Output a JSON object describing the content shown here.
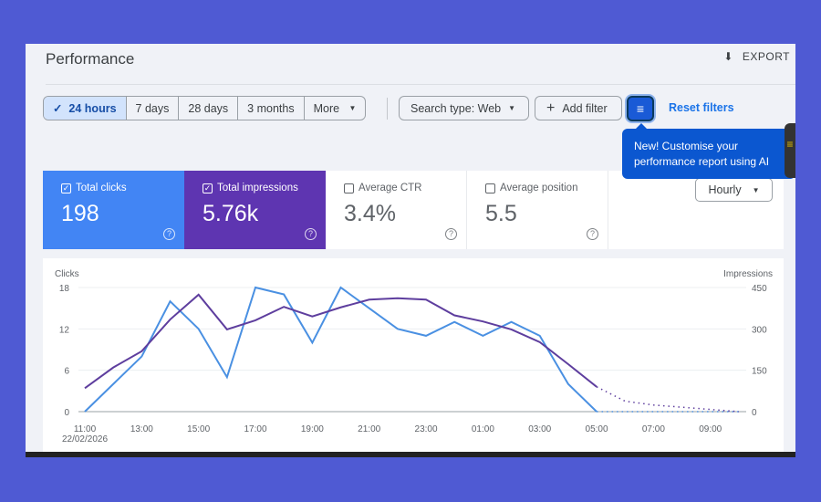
{
  "header": {
    "title": "Performance",
    "export_label": "EXPORT"
  },
  "date_ranges": [
    {
      "label": "24 hours",
      "selected": true
    },
    {
      "label": "7 days"
    },
    {
      "label": "28 days"
    },
    {
      "label": "3 months"
    },
    {
      "label": "More"
    }
  ],
  "filters": {
    "search_type": "Search type: Web",
    "add_filter": "Add filter",
    "reset": "Reset filters"
  },
  "tooltip": "New! Customise your performance report using AI",
  "metrics": [
    {
      "label": "Total clicks",
      "value": "198",
      "checked": true,
      "color": "#4285f4"
    },
    {
      "label": "Total impressions",
      "value": "5.76k",
      "checked": true,
      "color": "#5e35b1"
    },
    {
      "label": "Average CTR",
      "value": "3.4%",
      "checked": false
    },
    {
      "label": "Average position",
      "value": "5.5",
      "checked": false
    }
  ],
  "granularity": "Hourly",
  "chart_data": {
    "type": "line",
    "x": [
      "11:00",
      "12:00",
      "13:00",
      "14:00",
      "15:00",
      "16:00",
      "17:00",
      "18:00",
      "19:00",
      "20:00",
      "21:00",
      "22:00",
      "23:00",
      "00:00",
      "01:00",
      "02:00",
      "03:00",
      "04:00",
      "05:00",
      "06:00",
      "07:00",
      "08:00",
      "09:00",
      "10:00"
    ],
    "x_tick_labels": [
      "11:00",
      "13:00",
      "15:00",
      "17:00",
      "19:00",
      "21:00",
      "23:00",
      "01:00",
      "03:00",
      "05:00",
      "07:00",
      "09:00"
    ],
    "x_start_date": "22/02/2026",
    "ylabel_left": "Clicks",
    "ylabel_right": "Impressions",
    "ylim_left": [
      0,
      18
    ],
    "yticks_left": [
      0,
      6,
      12,
      18
    ],
    "ylim_right": [
      0,
      450
    ],
    "yticks_right": [
      0,
      150,
      300,
      450
    ],
    "grid": true,
    "series": [
      {
        "name": "Clicks",
        "axis": "left",
        "color": "#4a90e2",
        "values": [
          0,
          4,
          8,
          16,
          12,
          5,
          18,
          17,
          10,
          18,
          15,
          12,
          11,
          13,
          11,
          13,
          11,
          4,
          0,
          0,
          0,
          0,
          0,
          0
        ],
        "dotted_from": "05:00"
      },
      {
        "name": "Impressions",
        "axis": "right",
        "color": "#5e3e9e",
        "values": [
          85,
          160,
          219,
          334,
          424,
          298,
          331,
          380,
          345,
          378,
          406,
          411,
          406,
          349,
          327,
          298,
          252,
          172,
          90,
          38,
          24,
          16,
          8,
          0
        ],
        "dotted_from": "05:00"
      }
    ]
  }
}
